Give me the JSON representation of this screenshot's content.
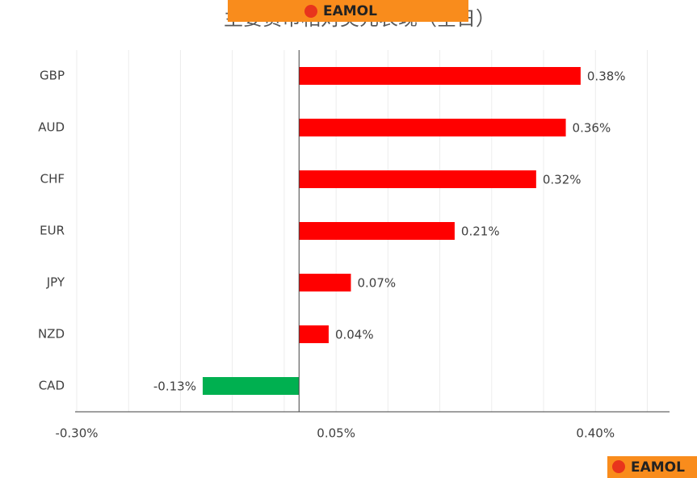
{
  "chart_data": {
    "type": "hbar",
    "title": "主要货币相对美元表现（全日）",
    "watermark": "EAMOL",
    "categories": [
      "GBP",
      "AUD",
      "CHF",
      "EUR",
      "JPY",
      "NZD",
      "CAD"
    ],
    "values": [
      0.38,
      0.36,
      0.32,
      0.21,
      0.07,
      0.04,
      -0.13
    ],
    "value_labels": [
      "0.38%",
      "0.36%",
      "0.32%",
      "0.21%",
      "0.07%",
      "0.04%",
      "-0.13%"
    ],
    "colors": [
      "#ff0000",
      "#ff0000",
      "#ff0000",
      "#ff0000",
      "#ff0000",
      "#ff0000",
      "#00b050"
    ],
    "xlim": [
      -0.3,
      0.5
    ],
    "xticks": [
      {
        "value": -0.3,
        "label": "-0.30%"
      },
      {
        "value": 0.05,
        "label": "0.05%"
      },
      {
        "value": 0.4,
        "label": "0.40%"
      }
    ],
    "xgrid": [
      -0.23,
      -0.16,
      -0.09,
      -0.02,
      0.12,
      0.19,
      0.26,
      0.33,
      0.47
    ],
    "grid": true
  }
}
